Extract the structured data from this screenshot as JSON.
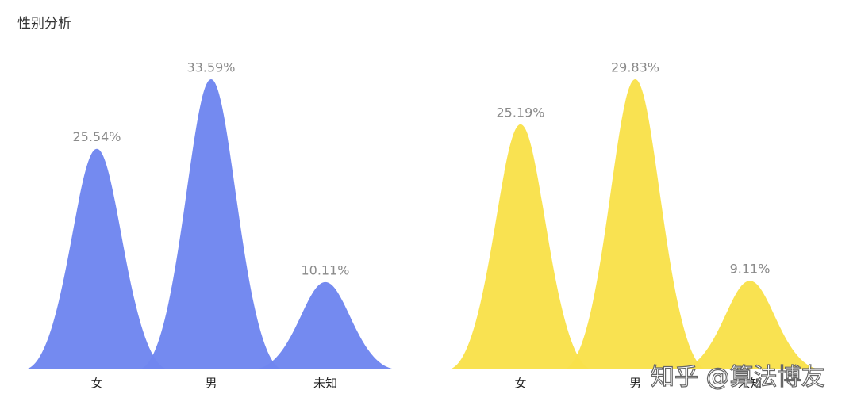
{
  "title": "性别分析",
  "watermark": "知乎 @算法博友",
  "chart_data": [
    {
      "type": "pictorialBar",
      "categories": [
        "女",
        "男",
        "未知"
      ],
      "values": [
        25.54,
        33.59,
        10.11
      ],
      "value_labels": [
        "25.54%",
        "33.59%",
        "10.11%"
      ],
      "color": "#6f86f0"
    },
    {
      "type": "pictorialBar",
      "categories": [
        "女",
        "男",
        "未知"
      ],
      "values": [
        25.19,
        29.83,
        9.11
      ],
      "value_labels": [
        "25.19%",
        "29.83%",
        "9.11%"
      ],
      "color": "#f9e14b"
    }
  ]
}
